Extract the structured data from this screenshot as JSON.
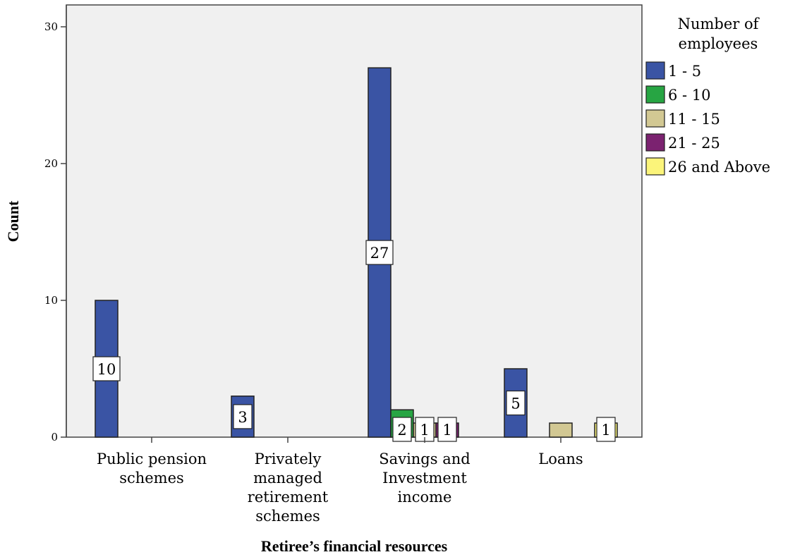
{
  "chart_data": {
    "type": "bar",
    "title": "",
    "xlabel": "Retiree’s financial resources",
    "ylabel": "Count",
    "ylim": [
      0,
      31
    ],
    "yticks": [
      0,
      10,
      20,
      30
    ],
    "grid": false,
    "legend_title": [
      "Number of",
      "employees"
    ],
    "legend_position": "right",
    "categories": [
      [
        "Public pension",
        "schemes"
      ],
      [
        "Privately",
        "managed",
        "retirement",
        "schemes"
      ],
      [
        "Savings and",
        "Investment",
        "income"
      ],
      [
        "Loans"
      ]
    ],
    "series": [
      {
        "name": "1 - 5",
        "color": "#3a54a4",
        "values": [
          10,
          3,
          27,
          5
        ]
      },
      {
        "name": "6 - 10",
        "color": "#27a543",
        "values": [
          0,
          0,
          2,
          0
        ]
      },
      {
        "name": "11 - 15",
        "color": "#d2c893",
        "values": [
          0,
          0,
          1,
          1
        ]
      },
      {
        "name": "21 - 25",
        "color": "#7b2270",
        "values": [
          0,
          0,
          1,
          0
        ]
      },
      {
        "name": "26 and Above",
        "color": "#fbf47a",
        "values": [
          0,
          0,
          0,
          1
        ]
      }
    ],
    "data_labels": [
      {
        "category": 0,
        "series": 0,
        "text": "10"
      },
      {
        "category": 1,
        "series": 0,
        "text": "3"
      },
      {
        "category": 2,
        "series": 0,
        "text": "27"
      },
      {
        "category": 2,
        "series": 1,
        "text": "2"
      },
      {
        "category": 2,
        "series": 2,
        "text": "1"
      },
      {
        "category": 2,
        "series": 3,
        "text": "1"
      },
      {
        "category": 3,
        "series": 0,
        "text": "5"
      },
      {
        "category": 3,
        "series": 4,
        "text": "1"
      }
    ],
    "plot_background": "#f0f0f0"
  }
}
